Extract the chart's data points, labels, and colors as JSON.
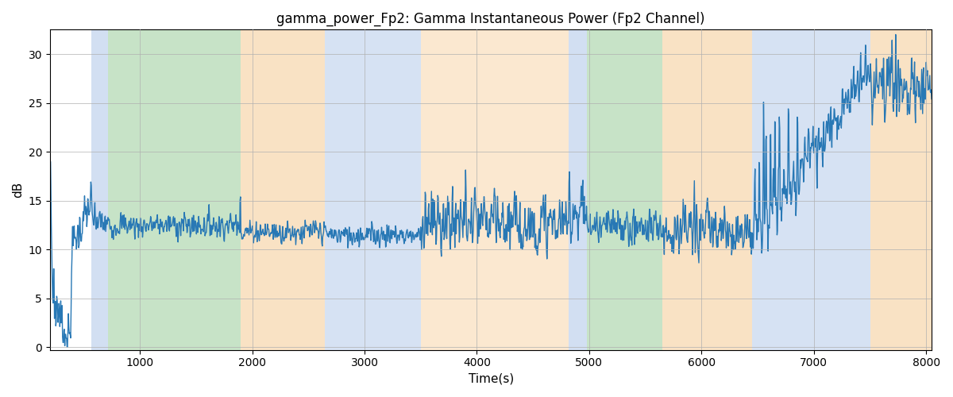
{
  "title": "gamma_power_Fp2: Gamma Instantaneous Power (Fp2 Channel)",
  "xlabel": "Time(s)",
  "ylabel": "dB",
  "xlim": [
    200,
    8050
  ],
  "ylim": [
    -0.3,
    32.5
  ],
  "yticks": [
    0,
    5,
    10,
    15,
    20,
    25,
    30
  ],
  "xticks": [
    1000,
    2000,
    3000,
    4000,
    5000,
    6000,
    7000,
    8000
  ],
  "line_color": "#2878b5",
  "line_width": 1.0,
  "grid_color": "#b0b0b0",
  "title_fontsize": 12,
  "label_fontsize": 11,
  "bands": [
    {
      "xmin": 570,
      "xmax": 720,
      "color": "#aec6e8",
      "alpha": 0.55
    },
    {
      "xmin": 720,
      "xmax": 1900,
      "color": "#90c990",
      "alpha": 0.5
    },
    {
      "xmin": 1900,
      "xmax": 2650,
      "color": "#f5c68a",
      "alpha": 0.5
    },
    {
      "xmin": 2650,
      "xmax": 3500,
      "color": "#aec6e8",
      "alpha": 0.5
    },
    {
      "xmin": 3500,
      "xmax": 4820,
      "color": "#f5c68a",
      "alpha": 0.4
    },
    {
      "xmin": 4820,
      "xmax": 4980,
      "color": "#aec6e8",
      "alpha": 0.55
    },
    {
      "xmin": 4980,
      "xmax": 5650,
      "color": "#90c990",
      "alpha": 0.5
    },
    {
      "xmin": 5650,
      "xmax": 6450,
      "color": "#f5c68a",
      "alpha": 0.5
    },
    {
      "xmin": 6450,
      "xmax": 7500,
      "color": "#aec6e8",
      "alpha": 0.5
    },
    {
      "xmin": 7500,
      "xmax": 8050,
      "color": "#f5c68a",
      "alpha": 0.5
    }
  ],
  "seed": 7,
  "t_start": 200,
  "t_end": 8050,
  "dt": 4
}
